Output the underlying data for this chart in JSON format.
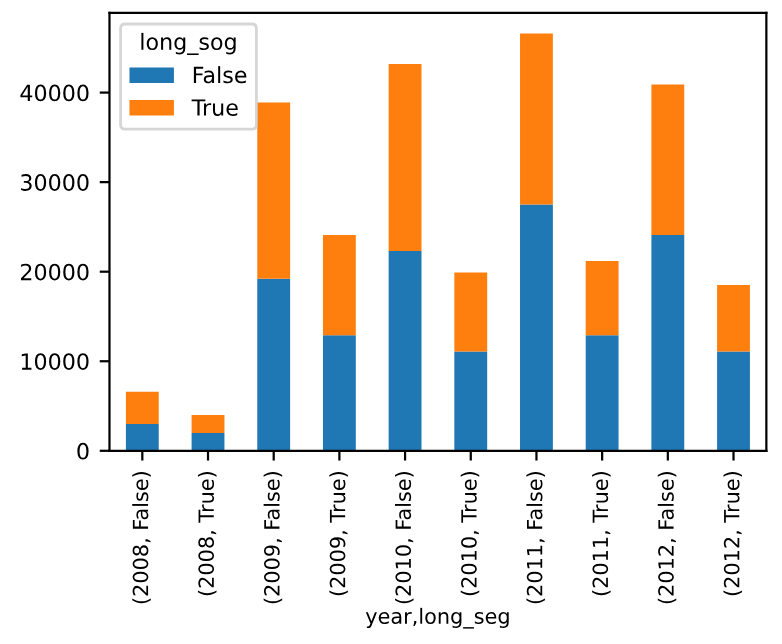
{
  "chart_data": {
    "type": "bar",
    "stacked": true,
    "xlabel": "year,long_seg",
    "legend_title": "long_sog",
    "legend": "top left",
    "categories": [
      "(2008, False)",
      "(2008, True)",
      "(2009, False)",
      "(2009, True)",
      "(2010, False)",
      "(2010, True)",
      "(2011, False)",
      "(2011, True)",
      "(2012, False)",
      "(2012, True)"
    ],
    "series": [
      {
        "name": "False",
        "color": "#1f77b4",
        "values": [
          3000,
          2000,
          19200,
          12900,
          22300,
          11100,
          27500,
          12900,
          24100,
          11100
        ]
      },
      {
        "name": "True",
        "color": "#ff7f0e",
        "values": [
          3600,
          2000,
          19700,
          11200,
          20900,
          8800,
          19100,
          8300,
          16800,
          7400
        ]
      }
    ],
    "ylim": [
      0,
      48900
    ],
    "yticks": [
      0,
      10000,
      20000,
      30000,
      40000
    ],
    "grid": false
  }
}
